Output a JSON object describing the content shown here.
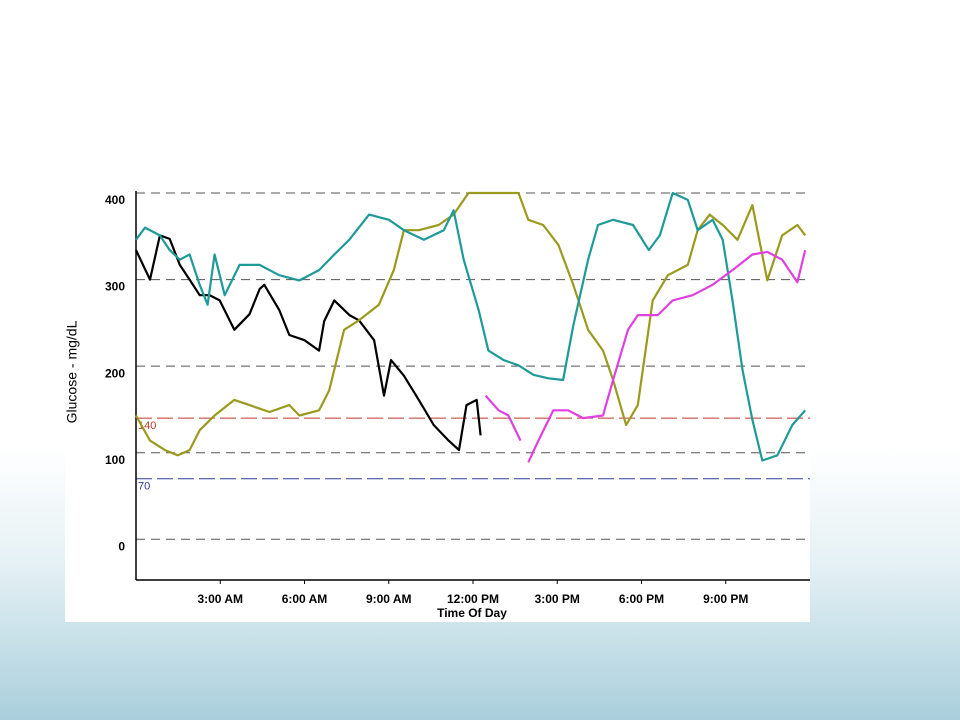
{
  "chart_data": {
    "type": "line",
    "y_label": "Glucose - mg/dL",
    "x_label": "Time Of Day",
    "xlim": [
      0,
      24
    ],
    "xticks": [
      {
        "value": 3,
        "label": "3:00 AM"
      },
      {
        "value": 6,
        "label": "6:00 AM"
      },
      {
        "value": 9,
        "label": "9:00 AM"
      },
      {
        "value": 12,
        "label": "12:00 PM"
      },
      {
        "value": 15,
        "label": "3:00 PM"
      },
      {
        "value": 18,
        "label": "6:00 PM"
      },
      {
        "value": 21,
        "label": "9:00 PM"
      }
    ],
    "ylim": [
      -47,
      400
    ],
    "yticks": [
      0,
      100,
      200,
      300,
      400
    ],
    "grid": true,
    "ref_lines": [
      {
        "value": 140,
        "label": "140",
        "color": "#c0392b"
      },
      {
        "value": 70,
        "label": "70",
        "color": "#2b3a99"
      }
    ],
    "series": [
      {
        "color": "#000000",
        "x": [
          0,
          0.5,
          0.85,
          1.2,
          1.56,
          1.91,
          2.27,
          2.62,
          2.98,
          3.5,
          4.04,
          4.4,
          4.57,
          5.1,
          5.46,
          6.0,
          6.52,
          6.7,
          7.06,
          7.6,
          7.94,
          8.48,
          8.83,
          9.08,
          9.54,
          10.07,
          10.6,
          11.13,
          11.5,
          11.77,
          12.13,
          12.27
        ],
        "values": [
          334,
          300,
          351,
          347,
          317,
          300,
          282,
          282,
          276,
          242,
          260,
          289,
          294,
          265,
          236,
          230,
          218,
          252,
          276,
          259,
          253,
          230,
          166,
          207,
          189,
          161,
          132,
          114,
          103,
          155,
          161,
          120
        ]
      },
      {
        "color": "#9a9a1e",
        "x": [
          0,
          0.5,
          1.03,
          1.49,
          1.91,
          2.27,
          2.8,
          3.5,
          4.04,
          4.75,
          5.46,
          5.82,
          6.52,
          6.88,
          7.41,
          7.94,
          8.65,
          9.18,
          9.54,
          10.07,
          10.78,
          11.31,
          11.84,
          13.62,
          13.97,
          14.5,
          15.04,
          15.57,
          16.1,
          16.63,
          16.99,
          17.45,
          17.87,
          18.4,
          18.94,
          19.65,
          20,
          20.43,
          20.89,
          21.42,
          21.95,
          22.48,
          23.01,
          23.55,
          23.83
        ],
        "values": [
          143,
          114,
          103,
          97,
          103,
          126,
          143,
          161,
          155,
          147,
          155,
          143,
          149,
          172,
          242,
          253,
          271,
          311,
          357,
          357,
          363,
          375,
          400,
          400,
          369,
          363,
          340,
          294,
          242,
          218,
          184,
          132,
          155,
          276,
          305,
          317,
          357,
          375,
          363,
          346,
          386,
          299,
          351,
          363,
          351
        ]
      },
      {
        "color": "#1f9a9a",
        "x": [
          0,
          0.32,
          0.85,
          1.2,
          1.56,
          1.91,
          2.27,
          2.55,
          2.8,
          3.16,
          3.69,
          4.4,
          5.1,
          5.82,
          6.52,
          7.06,
          7.59,
          8.3,
          9.01,
          9.54,
          10.25,
          10.96,
          11.31,
          11.67,
          12.2,
          12.55,
          13.09,
          13.62,
          14.15,
          14.68,
          15.21,
          15.57,
          16.1,
          16.45,
          16.99,
          17.7,
          18.26,
          18.65,
          19.11,
          19.65,
          20,
          20.53,
          20.89,
          21.24,
          21.6,
          21.95,
          22.3,
          22.84,
          23.37,
          23.83
        ],
        "values": [
          346,
          360,
          351,
          334,
          323,
          329,
          294,
          271,
          329,
          282,
          317,
          317,
          305,
          299,
          311,
          329,
          346,
          375,
          369,
          357,
          346,
          357,
          380,
          323,
          265,
          218,
          207,
          201,
          190,
          186,
          184,
          247,
          323,
          363,
          369,
          363,
          334,
          351,
          400,
          392,
          357,
          369,
          346,
          276,
          195,
          138,
          91,
          97,
          132,
          149
        ]
      },
      {
        "color": "#e040e0",
        "x": [
          12.45,
          12.91,
          13.26,
          13.69,
          13.85,
          13.97,
          14.33,
          14.86,
          15.39,
          15.92,
          16.63,
          16.99,
          17.52,
          17.87,
          18.58,
          19.11,
          19.82,
          20.53,
          21.24,
          21.95,
          22.48,
          23.01,
          23.55,
          23.83
        ],
        "values": [
          166,
          149,
          143,
          114,
          null,
          89,
          114,
          149,
          149,
          140,
          143,
          184,
          242,
          259,
          259,
          276,
          282,
          294,
          311,
          329,
          332,
          323,
          297,
          334
        ]
      }
    ]
  }
}
